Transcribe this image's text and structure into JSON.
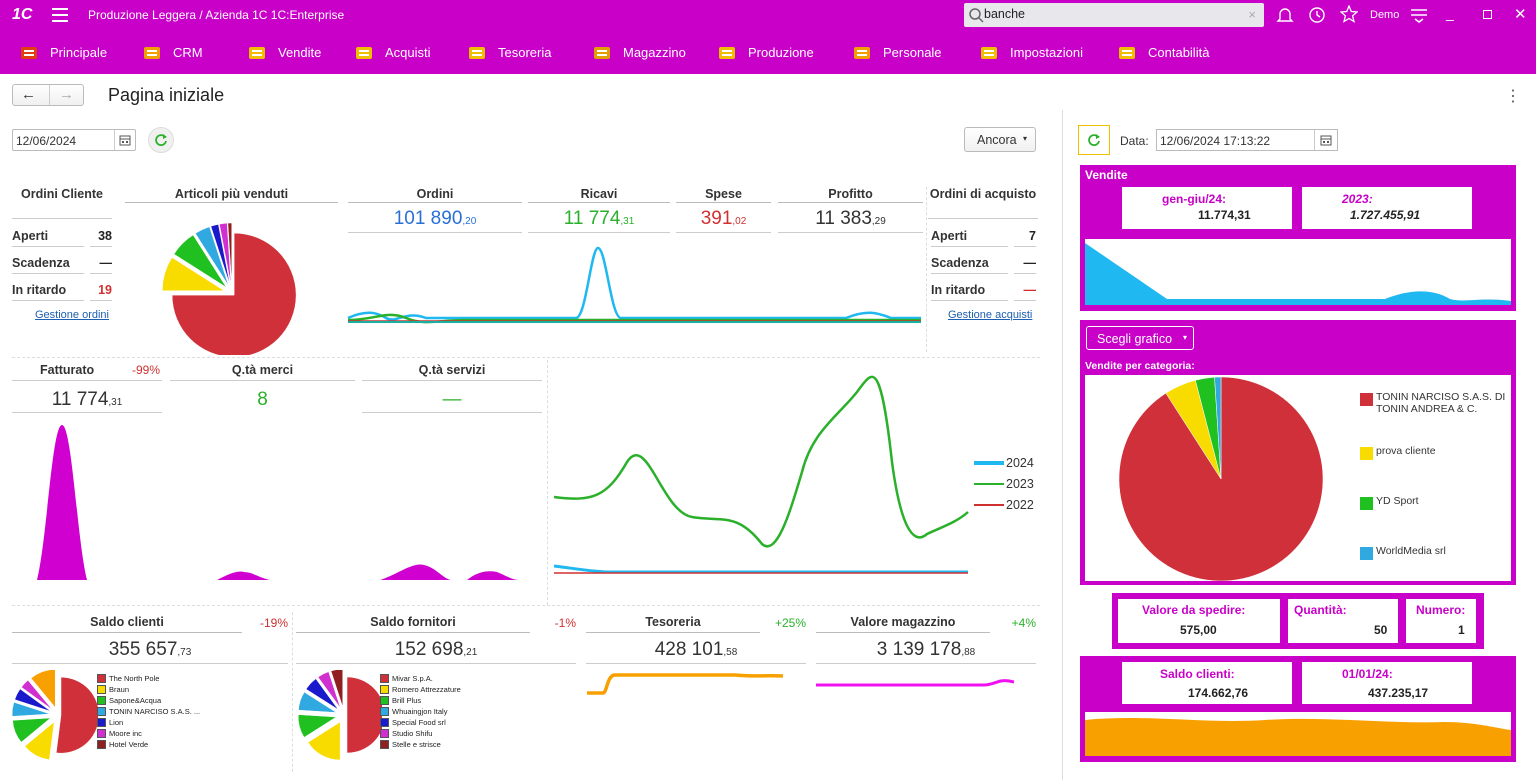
{
  "titlebar": {
    "logo": "1С",
    "title": "Produzione Leggera / Azienda 1C 1C:Enterprise",
    "search_value": "banche",
    "user": "Demo"
  },
  "menu": [
    {
      "label": "Principale",
      "icon": "home-icon",
      "color": "#e04010"
    },
    {
      "label": "CRM",
      "icon": "crm-icon",
      "color": "#f0a000"
    },
    {
      "label": "Vendite",
      "icon": "sales-icon",
      "color": "#f0c000"
    },
    {
      "label": "Acquisti",
      "icon": "truck-icon",
      "color": "#f0c000"
    },
    {
      "label": "Tesoreria",
      "icon": "treasury-icon",
      "color": "#f0c000"
    },
    {
      "label": "Magazzino",
      "icon": "box-icon",
      "color": "#e0a000"
    },
    {
      "label": "Produzione",
      "icon": "factory-icon",
      "color": "#f0c000"
    },
    {
      "label": "Personale",
      "icon": "people-icon",
      "color": "#f0a000"
    },
    {
      "label": "Impostazioni",
      "icon": "settings-icon",
      "color": "#f0c000"
    },
    {
      "label": "Contabilità",
      "icon": "ledger-icon",
      "color": "#f0c000"
    }
  ],
  "page": {
    "title": "Pagina iniziale",
    "date": "12/06/2024",
    "more_button": "Ancora"
  },
  "orders_client": {
    "title": "Ordini Cliente",
    "rows": [
      {
        "label": "Aperti",
        "value": "38",
        "color": "#222"
      },
      {
        "label": "Scadenza",
        "value": "—",
        "color": "#222"
      },
      {
        "label": "In ritardo",
        "value": "19",
        "color": "#d03030"
      }
    ],
    "link": "Gestione ordini"
  },
  "top_items": {
    "title": "Articoli più venduti"
  },
  "kpis": [
    {
      "label": "Ordini",
      "int": "101 890",
      "dec": ",20",
      "color": "#2a6fd6"
    },
    {
      "label": "Ricavi",
      "int": "11 774",
      "dec": ",31",
      "color": "#2ab02a"
    },
    {
      "label": "Spese",
      "int": "391",
      "dec": ",02",
      "color": "#d03030"
    },
    {
      "label": "Profitto",
      "int": "11 383",
      "dec": ",29",
      "color": "#333333"
    }
  ],
  "orders_purchase": {
    "title": "Ordini di acquisto",
    "rows": [
      {
        "label": "Aperti",
        "value": "7",
        "color": "#222"
      },
      {
        "label": "Scadenza",
        "value": "—",
        "color": "#222"
      },
      {
        "label": "In ritardo",
        "value": "—",
        "color": "#d03030"
      }
    ],
    "link": "Gestione acquisti"
  },
  "middle": {
    "fatturato": {
      "label": "Fatturato",
      "change": "-99%",
      "int": "11 774",
      "dec": ",31"
    },
    "qta_merci": {
      "label": "Q.tà merci",
      "value": "8"
    },
    "qta_servizi": {
      "label": "Q.tà servizi",
      "value": "—"
    },
    "legend": [
      "2024",
      "2023",
      "2022"
    ]
  },
  "bottom": [
    {
      "label": "Saldo clienti",
      "change": "-19%",
      "change_color": "#d03030",
      "int": "355 657",
      "dec": ",73"
    },
    {
      "label": "Saldo fornitori",
      "change": "-1%",
      "change_color": "#d03030",
      "int": "152 698",
      "dec": ",21"
    },
    {
      "label": "Tesoreria",
      "change": "+25%",
      "change_color": "#2ab02a",
      "int": "428 101",
      "dec": ",58"
    },
    {
      "label": "Valore magazzino",
      "change": "+4%",
      "change_color": "#2ab02a",
      "int": "3 139 178",
      "dec": ",88"
    }
  ],
  "clients_legend": [
    "The North Pole",
    "Braun",
    "Sapone&Acqua",
    "TONIN NARCISO S.A.S. ...",
    "Lion",
    "Moore inc",
    "Hotel Verde"
  ],
  "suppliers_legend": [
    "Mivar S.p.A.",
    "Romero Attrezzature",
    "Brill Plus",
    "Whuaingjon Italy",
    "Special Food srl",
    "Studio Shifu",
    "Stelle e strisce"
  ],
  "legend_colors": [
    "#d0303a",
    "#f8dc00",
    "#20c020",
    "#30a8e0",
    "#1a1acc",
    "#d030d0",
    "#902020"
  ],
  "right": {
    "data_label": "Data:",
    "datetime": "12/06/2024 17:13:22",
    "sales_title": "Vendite",
    "sales_box1_label": "gen-giu/24:",
    "sales_box1_value": "11.774,31",
    "sales_box2_label": "2023:",
    "sales_box2_value": "1.727.455,91",
    "chart_button": "Scegli grafico",
    "category_title": "Vendite per categoria:",
    "category_legend": [
      {
        "label": "TONIN NARCISO S.A.S. DI TONIN ANDREA & C.",
        "color": "#d0303a"
      },
      {
        "label": "prova cliente",
        "color": "#f8dc00"
      },
      {
        "label": "YD Sport",
        "color": "#20c020"
      },
      {
        "label": "WorldMedia srl",
        "color": "#30a8e0"
      }
    ],
    "ship": [
      {
        "label": "Valore da spedire:",
        "value": "575,00"
      },
      {
        "label": "Quantità:",
        "value": "50"
      },
      {
        "label": "Numero:",
        "value": "1"
      }
    ],
    "balance": [
      {
        "label": "Saldo clienti:",
        "value": "174.662,76"
      },
      {
        "label": "01/01/24:",
        "value": "437.235,17"
      }
    ]
  },
  "colors": {
    "accent": "#c800c8",
    "green": "#2ab02a",
    "red": "#d03030",
    "blue": "#2a6fd6",
    "cyan": "#20b8f0",
    "orange": "#f8a000",
    "magenta": "#e000e0"
  }
}
